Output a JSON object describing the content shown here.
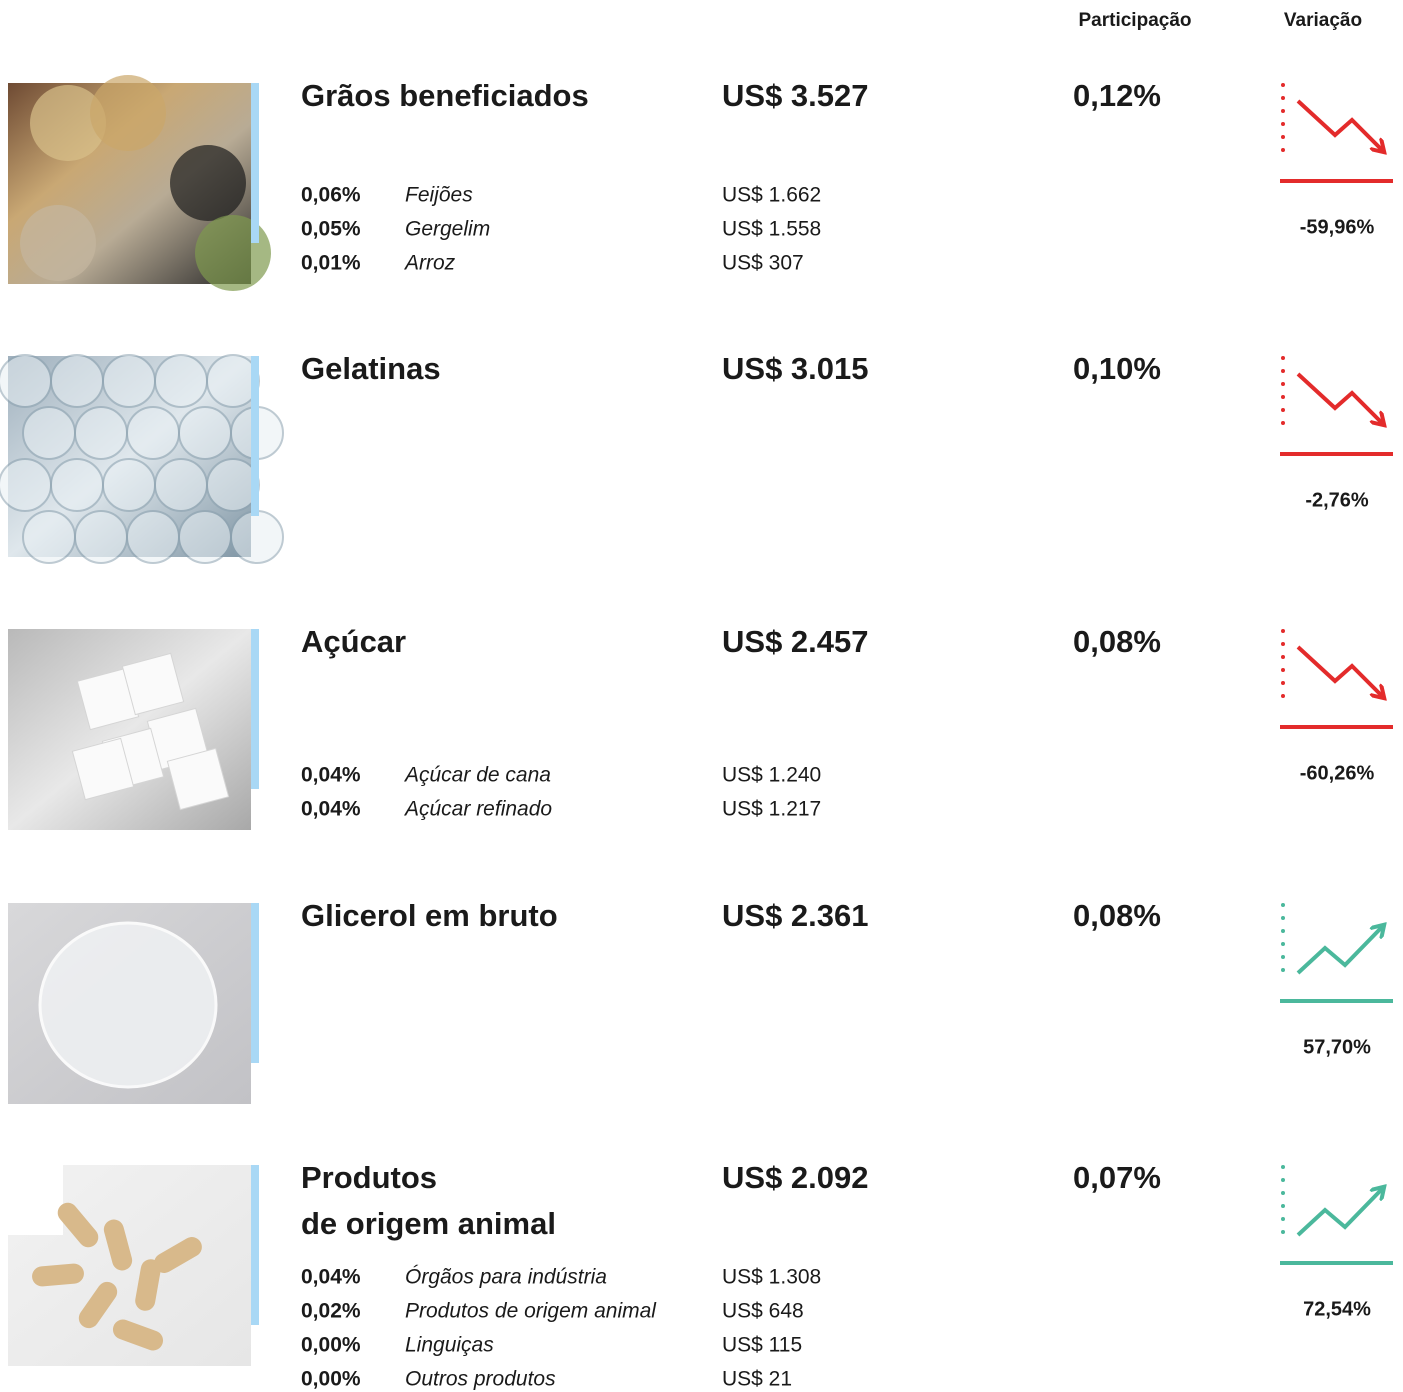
{
  "header": {
    "share": "Participação",
    "variation": "Variação"
  },
  "items": [
    {
      "name": [
        "Grãos beneficiados"
      ],
      "value": "US$  3.527",
      "share": "0,12%",
      "variation": "-59,96%",
      "trend": "down",
      "color": "#e32b2b",
      "subitems": [
        {
          "share": "0,06%",
          "name": "Feijões",
          "value": "US$ 1.662"
        },
        {
          "share": "0,05%",
          "name": "Gergelim",
          "value": "US$ 1.558"
        },
        {
          "share": "0,01%",
          "name": "Arroz",
          "value": "US$ 307"
        }
      ]
    },
    {
      "name": [
        "Gelatinas"
      ],
      "value": "US$  3.015",
      "share": "0,10%",
      "variation": "-2,76%",
      "trend": "down",
      "color": "#e32b2b",
      "subitems": []
    },
    {
      "name": [
        "Açúcar"
      ],
      "value": "US$  2.457",
      "share": "0,08%",
      "variation": "-60,26%",
      "trend": "down",
      "color": "#e32b2b",
      "subitems": [
        {
          "share": "0,04%",
          "name": "Açúcar de cana",
          "value": "US$ 1.240"
        },
        {
          "share": "0,04%",
          "name": "Açúcar refinado",
          "value": "US$ 1.217"
        }
      ]
    },
    {
      "name": [
        "Glicerol em bruto"
      ],
      "value": "US$  2.361",
      "share": "0,08%",
      "variation": "57,70%",
      "trend": "up",
      "color": "#4bb89c",
      "subitems": []
    },
    {
      "name": [
        "Produtos",
        "de origem animal"
      ],
      "value": "US$  2.092",
      "share": "0,07%",
      "variation": "72,54%",
      "trend": "up",
      "color": "#4bb89c",
      "subitems": [
        {
          "share": "0,04%",
          "name": "Órgãos para indústria",
          "value": "US$ 1.308"
        },
        {
          "share": "0,02%",
          "name": "Produtos de origem animal",
          "value": "US$ 648"
        },
        {
          "share": "0,00%",
          "name": "Linguiças",
          "value": "US$ 115"
        },
        {
          "share": "0,00%",
          "name": "Outros produtos",
          "value": "US$ 21"
        }
      ]
    }
  ]
}
